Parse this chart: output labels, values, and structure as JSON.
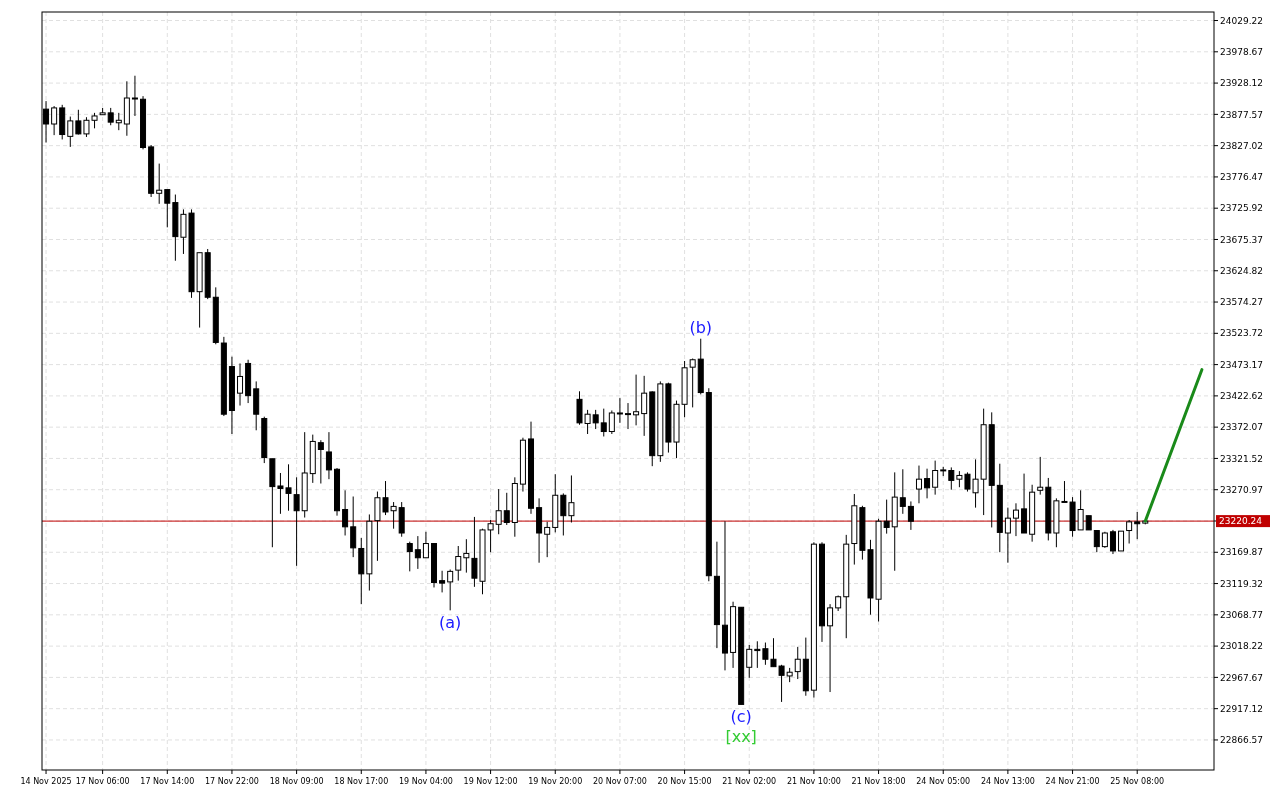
{
  "chart_data": {
    "type": "candlestick",
    "categories": [
      "14 Nov 2025",
      null,
      null,
      null,
      null,
      null,
      null,
      "17 Nov 06:00",
      null,
      null,
      null,
      null,
      null,
      null,
      null,
      "17 Nov 14:00",
      null,
      null,
      null,
      null,
      null,
      null,
      null,
      "17 Nov 22:00",
      null,
      null,
      null,
      null,
      null,
      null,
      null,
      "18 Nov 09:00",
      null,
      null,
      null,
      null,
      null,
      null,
      null,
      "18 Nov 17:00",
      null,
      null,
      null,
      null,
      null,
      null,
      null,
      "19 Nov 04:00",
      null,
      null,
      null,
      null,
      null,
      null,
      null,
      "19 Nov 12:00",
      null,
      null,
      null,
      null,
      null,
      null,
      null,
      "19 Nov 20:00",
      null,
      null,
      null,
      null,
      null,
      null,
      null,
      "20 Nov 07:00",
      null,
      null,
      null,
      null,
      null,
      null,
      null,
      "20 Nov 15:00",
      null,
      null,
      null,
      null,
      null,
      null,
      null,
      "21 Nov 02:00",
      null,
      null,
      null,
      null,
      null,
      null,
      null,
      "21 Nov 10:00",
      null,
      null,
      null,
      null,
      null,
      null,
      null,
      "21 Nov 18:00",
      null,
      null,
      null,
      null,
      null,
      null,
      null,
      "24 Nov 05:00",
      null,
      null,
      null,
      null,
      null,
      null,
      null,
      "24 Nov 13:00",
      null,
      null,
      null,
      null,
      null,
      null,
      null,
      "24 Nov 21:00",
      null,
      null,
      null,
      null,
      null,
      null,
      null,
      "25 Nov 08:00",
      null,
      null,
      null,
      null,
      null,
      null,
      null,
      null,
      null
    ],
    "ohlc": [
      [
        23886,
        23899,
        23832,
        23862
      ],
      [
        23862,
        23891,
        23844,
        23888
      ],
      [
        23888,
        23893,
        23837,
        23845
      ],
      [
        23842,
        23874,
        23825,
        23867
      ],
      [
        23867,
        23885,
        23845,
        23846
      ],
      [
        23846,
        23873,
        23841,
        23868
      ],
      [
        23868,
        23880,
        23855,
        23875
      ],
      [
        23877,
        23888,
        23877,
        23880
      ],
      [
        23880,
        23888,
        23860,
        23865
      ],
      [
        23864,
        23880,
        23852,
        23868
      ],
      [
        23862,
        23931,
        23843,
        23904
      ],
      [
        23904,
        23940,
        23875,
        23904
      ],
      [
        23902,
        23907,
        23821,
        23824
      ],
      [
        23825,
        23828,
        23744,
        23750
      ],
      [
        23750,
        23798,
        23733,
        23755
      ],
      [
        23756,
        23756,
        23695,
        23734
      ],
      [
        23735,
        23748,
        23641,
        23680
      ],
      [
        23679,
        23724,
        23652,
        23716
      ],
      [
        23718,
        23724,
        23581,
        23591
      ],
      [
        23591,
        23654,
        23533,
        23654
      ],
      [
        23654,
        23660,
        23579,
        23582
      ],
      [
        23582,
        23598,
        23506,
        23509
      ],
      [
        23508,
        23518,
        23390,
        23393
      ],
      [
        23470,
        23486,
        23361,
        23399
      ],
      [
        23427,
        23475,
        23407,
        23454
      ],
      [
        23475,
        23481,
        23411,
        23423
      ],
      [
        23434,
        23446,
        23367,
        23393
      ],
      [
        23386,
        23389,
        23314,
        23323
      ],
      [
        23321,
        23321,
        23178,
        23276
      ],
      [
        23277,
        23298,
        23232,
        23273
      ],
      [
        23274,
        23312,
        23237,
        23265
      ],
      [
        23263,
        23291,
        23148,
        23237
      ],
      [
        23237,
        23364,
        23226,
        23298
      ],
      [
        23297,
        23360,
        23282,
        23349
      ],
      [
        23347,
        23351,
        23281,
        23336
      ],
      [
        23332,
        23364,
        23288,
        23303
      ],
      [
        23304,
        23306,
        23229,
        23237
      ],
      [
        23239,
        23270,
        23197,
        23211
      ],
      [
        23211,
        23260,
        23162,
        23177
      ],
      [
        23176,
        23193,
        23086,
        23135
      ],
      [
        23135,
        23231,
        23108,
        23220
      ],
      [
        23221,
        23268,
        23156,
        23258
      ],
      [
        23258,
        23285,
        23230,
        23235
      ],
      [
        23237,
        23251,
        23208,
        23244
      ],
      [
        23242,
        23251,
        23195,
        23201
      ],
      [
        23184,
        23187,
        23139,
        23171
      ],
      [
        23174,
        23196,
        23143,
        23161
      ],
      [
        23161,
        23203,
        23161,
        23184
      ],
      [
        23184,
        23184,
        23113,
        23121
      ],
      [
        23124,
        23140,
        23105,
        23120
      ],
      [
        23122,
        23142,
        23076,
        23139
      ],
      [
        23141,
        23180,
        23124,
        23163
      ],
      [
        23161,
        23191,
        23137,
        23168
      ],
      [
        23160,
        23227,
        23114,
        23128
      ],
      [
        23123,
        23208,
        23102,
        23206
      ],
      [
        23206,
        23222,
        23170,
        23216
      ],
      [
        23215,
        23272,
        23199,
        23237
      ],
      [
        23237,
        23266,
        23214,
        23218
      ],
      [
        23218,
        23291,
        23195,
        23281
      ],
      [
        23280,
        23355,
        23268,
        23351
      ],
      [
        23353,
        23381,
        23232,
        23241
      ],
      [
        23242,
        23257,
        23153,
        23201
      ],
      [
        23199,
        23219,
        23162,
        23210
      ],
      [
        23210,
        23296,
        23202,
        23262
      ],
      [
        23262,
        23265,
        23197,
        23229
      ],
      [
        23229,
        23294,
        23218,
        23250
      ],
      [
        23417,
        23430,
        23376,
        23379
      ],
      [
        23378,
        23400,
        23361,
        23393
      ],
      [
        23392,
        23400,
        23369,
        23379
      ],
      [
        23379,
        23402,
        23357,
        23365
      ],
      [
        23365,
        23399,
        23361,
        23395
      ],
      [
        23395,
        23419,
        23379,
        23395
      ],
      [
        23394,
        23411,
        23369,
        23394
      ],
      [
        23392,
        23457,
        23375,
        23397
      ],
      [
        23394,
        23455,
        23358,
        23427
      ],
      [
        23429,
        23430,
        23309,
        23326
      ],
      [
        23326,
        23446,
        23316,
        23442
      ],
      [
        23442,
        23444,
        23331,
        23348
      ],
      [
        23348,
        23415,
        23322,
        23409
      ],
      [
        23409,
        23479,
        23388,
        23468
      ],
      [
        23469,
        23483,
        23404,
        23481
      ],
      [
        23482,
        23515,
        23425,
        23428
      ],
      [
        23428,
        23435,
        23123,
        23132
      ],
      [
        23131,
        23187,
        23015,
        23053
      ],
      [
        23052,
        23220,
        22979,
        23007
      ],
      [
        23008,
        23090,
        22983,
        23082
      ],
      [
        23081,
        23081,
        22924,
        22924
      ],
      [
        22984,
        23020,
        22967,
        23013
      ],
      [
        23013,
        23026,
        22983,
        23011
      ],
      [
        23014,
        23024,
        22988,
        22997
      ],
      [
        22997,
        23031,
        22985,
        22985
      ],
      [
        22986,
        22988,
        22928,
        22971
      ],
      [
        22970,
        22983,
        22960,
        22976
      ],
      [
        22977,
        23017,
        22965,
        22997
      ],
      [
        22997,
        23032,
        22938,
        22946
      ],
      [
        22947,
        23186,
        22935,
        23183
      ],
      [
        23183,
        23186,
        23025,
        23051
      ],
      [
        23051,
        23086,
        22944,
        23080
      ],
      [
        23080,
        23100,
        23075,
        23098
      ],
      [
        23098,
        23198,
        23031,
        23183
      ],
      [
        23184,
        23264,
        23150,
        23245
      ],
      [
        23242,
        23245,
        23158,
        23173
      ],
      [
        23174,
        23190,
        23069,
        23096
      ],
      [
        23094,
        23224,
        23058,
        23220
      ],
      [
        23220,
        23255,
        23200,
        23210
      ],
      [
        23211,
        23299,
        23140,
        23259
      ],
      [
        23258,
        23304,
        23232,
        23244
      ],
      [
        23244,
        23252,
        23206,
        23220
      ],
      [
        23272,
        23310,
        23249,
        23288
      ],
      [
        23289,
        23305,
        23257,
        23274
      ],
      [
        23275,
        23318,
        23263,
        23302
      ],
      [
        23303,
        23308,
        23293,
        23303
      ],
      [
        23302,
        23307,
        23271,
        23286
      ],
      [
        23288,
        23301,
        23275,
        23294
      ],
      [
        23296,
        23299,
        23268,
        23272
      ],
      [
        23266,
        23320,
        23242,
        23288
      ],
      [
        23288,
        23402,
        23230,
        23376
      ],
      [
        23376,
        23396,
        23210,
        23278
      ],
      [
        23278,
        23313,
        23170,
        23202
      ],
      [
        23201,
        23242,
        23153,
        23225
      ],
      [
        23225,
        23249,
        23196,
        23238
      ],
      [
        23240,
        23297,
        23201,
        23201
      ],
      [
        23199,
        23279,
        23187,
        23267
      ],
      [
        23270,
        23324,
        23263,
        23275
      ],
      [
        23275,
        23290,
        23189,
        23201
      ],
      [
        23201,
        23257,
        23178,
        23253
      ],
      [
        23252,
        23285,
        23251,
        23252
      ],
      [
        23251,
        23259,
        23195,
        23205
      ],
      [
        23206,
        23270,
        23206,
        23239
      ],
      [
        23229,
        23229,
        23206,
        23206
      ],
      [
        23205,
        23205,
        23170,
        23179
      ],
      [
        23179,
        23203,
        23177,
        23201
      ],
      [
        23203,
        23206,
        23167,
        23172
      ],
      [
        23172,
        23204,
        23172,
        23204
      ],
      [
        23205,
        23222,
        23184,
        23219
      ],
      [
        23219,
        23235,
        23191,
        23216
      ],
      [
        23217,
        23222,
        23215,
        23220.24
      ],
      null,
      null,
      null,
      null,
      null,
      null,
      null,
      null
    ],
    "series": [
      {
        "type": "line",
        "color": "#1a8a1a",
        "values": [
          null,
          null,
          null,
          null,
          null,
          null,
          null,
          null,
          null,
          null,
          null,
          null,
          null,
          null,
          null,
          null,
          null,
          null,
          null,
          null,
          null,
          null,
          null,
          null,
          null,
          null,
          null,
          null,
          null,
          null,
          null,
          null,
          null,
          null,
          null,
          null,
          null,
          null,
          null,
          null,
          null,
          null,
          null,
          null,
          null,
          null,
          null,
          null,
          null,
          null,
          null,
          null,
          null,
          null,
          null,
          null,
          null,
          null,
          null,
          null,
          null,
          null,
          null,
          null,
          null,
          null,
          null,
          null,
          null,
          null,
          null,
          null,
          null,
          null,
          null,
          null,
          null,
          null,
          null,
          null,
          null,
          null,
          null,
          null,
          null,
          null,
          null,
          null,
          null,
          null,
          null,
          null,
          null,
          null,
          null,
          null,
          null,
          null,
          null,
          null,
          null,
          null,
          null,
          null,
          null,
          null,
          null,
          null,
          null,
          null,
          null,
          null,
          null,
          null,
          null,
          null,
          null,
          null,
          null,
          null,
          null,
          null,
          null,
          null,
          null,
          null,
          null,
          null,
          null,
          null,
          null,
          null,
          null,
          null,
          null,
          null,
          23220.24,
          null,
          null,
          null,
          null,
          null,
          null,
          23465,
          null
        ]
      }
    ],
    "ylim": [
      22818,
      24043
    ],
    "yticks": [
      22866.57,
      22917.12,
      22967.67,
      23018.22,
      23068.77,
      23119.32,
      23169.87,
      {
        "value": 23220.42,
        "label": null
      },
      23270.97,
      23321.52,
      23372.07,
      23422.62,
      23473.17,
      23523.72,
      23574.27,
      23624.82,
      23675.37,
      23725.92,
      23776.47,
      23827.02,
      23877.57,
      23928.12,
      23978.67,
      24029.22
    ],
    "grid": true,
    "ref_lines": [
      {
        "axis": "y",
        "value": 23220.24,
        "label": "23220.24",
        "color": "#c00000"
      }
    ],
    "annotations": [
      {
        "text": "(a)",
        "y": 23076
      },
      {
        "text": "(b)",
        "y": 23515
      },
      {
        "text": "(c)",
        "y": 22924
      },
      {
        "text": "[xx]",
        "y": 22924
      }
    ]
  }
}
